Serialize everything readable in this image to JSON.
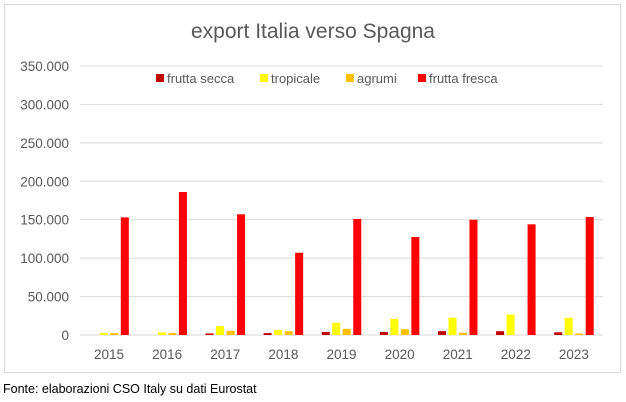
{
  "chart_data": {
    "type": "bar",
    "title": "export Italia verso Spagna",
    "xlabel": "",
    "ylabel": "",
    "categories": [
      "2015",
      "2016",
      "2017",
      "2018",
      "2019",
      "2020",
      "2021",
      "2022",
      "2023"
    ],
    "series": [
      {
        "name": "frutta secca",
        "color": "#c00000",
        "values": [
          0,
          0,
          2000,
          2500,
          4000,
          4000,
          5000,
          5000,
          3500
        ]
      },
      {
        "name": "tropicale",
        "color": "#ffff00",
        "values": [
          2500,
          3500,
          11500,
          6500,
          16000,
          21000,
          22500,
          26500,
          22500
        ]
      },
      {
        "name": "agrumi",
        "color": "#ffc000",
        "values": [
          2500,
          2500,
          5500,
          5000,
          8000,
          7500,
          3000,
          0,
          2000
        ]
      },
      {
        "name": "frutta fresca",
        "color": "#ff0000",
        "values": [
          153000,
          186000,
          157000,
          107000,
          151000,
          127500,
          150000,
          144000,
          153500
        ]
      }
    ],
    "ylim": [
      0,
      350000
    ],
    "yticks": [
      0,
      50000,
      100000,
      150000,
      200000,
      250000,
      300000,
      350000
    ],
    "ytick_labels": [
      "0",
      "50.000",
      "100.000",
      "150.000",
      "200.000",
      "250.000",
      "300.000",
      "350.000"
    ],
    "grid": true,
    "legend_position": "top"
  },
  "footer": {
    "source": "Fonte: elaborazioni CSO Italy su dati Eurostat"
  }
}
